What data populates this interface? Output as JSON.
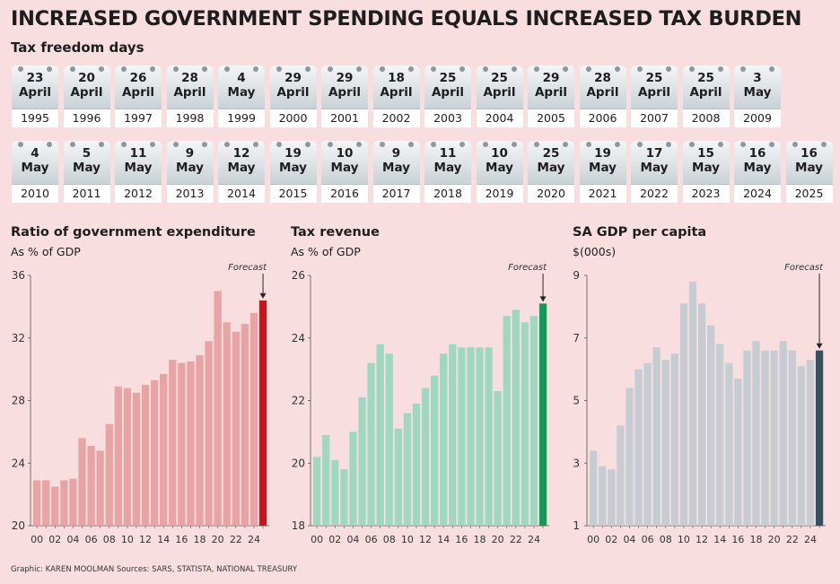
{
  "headline": "INCREASED GOVERNMENT SPENDING EQUALS INCREASED TAX BURDEN",
  "subhead": "Tax freedom days",
  "freedom_days": [
    {
      "day": "23",
      "month": "April",
      "year": "1995"
    },
    {
      "day": "20",
      "month": "April",
      "year": "1996"
    },
    {
      "day": "26",
      "month": "April",
      "year": "1997"
    },
    {
      "day": "28",
      "month": "April",
      "year": "1998"
    },
    {
      "day": "4",
      "month": "May",
      "year": "1999"
    },
    {
      "day": "29",
      "month": "April",
      "year": "2000"
    },
    {
      "day": "29",
      "month": "April",
      "year": "2001"
    },
    {
      "day": "18",
      "month": "April",
      "year": "2002"
    },
    {
      "day": "25",
      "month": "April",
      "year": "2003"
    },
    {
      "day": "25",
      "month": "April",
      "year": "2004"
    },
    {
      "day": "29",
      "month": "April",
      "year": "2005"
    },
    {
      "day": "28",
      "month": "April",
      "year": "2006"
    },
    {
      "day": "25",
      "month": "April",
      "year": "2007"
    },
    {
      "day": "25",
      "month": "April",
      "year": "2008"
    },
    {
      "day": "3",
      "month": "May",
      "year": "2009"
    },
    {
      "day": "4",
      "month": "May",
      "year": "2010"
    },
    {
      "day": "5",
      "month": "May",
      "year": "2011"
    },
    {
      "day": "11",
      "month": "May",
      "year": "2012"
    },
    {
      "day": "9",
      "month": "May",
      "year": "2013"
    },
    {
      "day": "12",
      "month": "May",
      "year": "2014"
    },
    {
      "day": "19",
      "month": "May",
      "year": "2015"
    },
    {
      "day": "10",
      "month": "May",
      "year": "2016"
    },
    {
      "day": "9",
      "month": "May",
      "year": "2017"
    },
    {
      "day": "11",
      "month": "May",
      "year": "2018"
    },
    {
      "day": "10",
      "month": "May",
      "year": "2019"
    },
    {
      "day": "25",
      "month": "May",
      "year": "2020"
    },
    {
      "day": "19",
      "month": "May",
      "year": "2021"
    },
    {
      "day": "17",
      "month": "May",
      "year": "2022"
    },
    {
      "day": "15",
      "month": "May",
      "year": "2023"
    },
    {
      "day": "16",
      "month": "May",
      "year": "2024"
    },
    {
      "day": "16",
      "month": "May",
      "year": "2025"
    }
  ],
  "footer": "Graphic: KAREN MOOLMAN  Sources: SARS, STATISTA, NATIONAL TREASURY",
  "chart_data": [
    {
      "type": "bar",
      "title": "Ratio of government expenditure",
      "subtitle": "As % of GDP",
      "annotation": "Forecast",
      "x": [
        "00",
        "01",
        "02",
        "03",
        "04",
        "05",
        "06",
        "07",
        "08",
        "09",
        "10",
        "11",
        "12",
        "13",
        "14",
        "15",
        "16",
        "17",
        "18",
        "19",
        "20",
        "21",
        "22",
        "23",
        "24",
        "25"
      ],
      "tick_labels": [
        "00",
        "02",
        "04",
        "06",
        "08",
        "10",
        "12",
        "14",
        "16",
        "18",
        "20",
        "22",
        "24"
      ],
      "values": [
        22.9,
        22.9,
        22.5,
        22.9,
        23.0,
        25.6,
        25.1,
        24.8,
        26.5,
        28.9,
        28.8,
        28.5,
        29.0,
        29.3,
        29.7,
        30.6,
        30.4,
        30.5,
        30.9,
        31.8,
        35.0,
        33.0,
        32.4,
        32.9,
        33.6,
        34.4
      ],
      "ylim": [
        20,
        36
      ],
      "yticks": [
        20,
        24,
        28,
        32,
        36
      ],
      "color": "#e8a3a4",
      "forecast_color": "#c4161c"
    },
    {
      "type": "bar",
      "title": "Tax revenue",
      "subtitle": "As % of GDP",
      "annotation": "Forecast",
      "x": [
        "00",
        "01",
        "02",
        "03",
        "04",
        "05",
        "06",
        "07",
        "08",
        "09",
        "10",
        "11",
        "12",
        "13",
        "14",
        "15",
        "16",
        "17",
        "18",
        "19",
        "20",
        "21",
        "22",
        "23",
        "24",
        "25"
      ],
      "tick_labels": [
        "00",
        "02",
        "04",
        "06",
        "08",
        "10",
        "12",
        "14",
        "16",
        "18",
        "20",
        "22",
        "24"
      ],
      "values": [
        20.2,
        20.9,
        20.1,
        19.8,
        21.0,
        22.1,
        23.2,
        23.8,
        23.5,
        21.1,
        21.6,
        21.9,
        22.4,
        22.8,
        23.5,
        23.8,
        23.7,
        23.7,
        23.7,
        23.7,
        22.3,
        24.7,
        24.9,
        24.5,
        24.7,
        25.1
      ],
      "ylim": [
        18,
        26
      ],
      "yticks": [
        18,
        20,
        22,
        24,
        26
      ],
      "color": "#9ed8c1",
      "forecast_color": "#139a5a"
    },
    {
      "type": "bar",
      "title": "SA GDP per capita",
      "subtitle": "$(000s)",
      "annotation": "Forecast",
      "x": [
        "00",
        "01",
        "02",
        "03",
        "04",
        "05",
        "06",
        "07",
        "08",
        "09",
        "10",
        "11",
        "12",
        "13",
        "14",
        "15",
        "16",
        "17",
        "18",
        "19",
        "20",
        "21",
        "22",
        "23",
        "24",
        "25"
      ],
      "tick_labels": [
        "00",
        "02",
        "04",
        "06",
        "08",
        "10",
        "12",
        "14",
        "16",
        "18",
        "20",
        "22",
        "24"
      ],
      "values": [
        3.4,
        2.9,
        2.8,
        4.2,
        5.4,
        6.0,
        6.2,
        6.7,
        6.3,
        6.5,
        8.1,
        8.8,
        8.1,
        7.4,
        6.8,
        6.2,
        5.7,
        6.6,
        6.9,
        6.6,
        6.6,
        6.9,
        6.6,
        6.1,
        6.3,
        6.6
      ],
      "ylim": [
        1,
        9
      ],
      "yticks": [
        1,
        3,
        5,
        7,
        9
      ],
      "color": "#c5ccd2",
      "forecast_color": "#34515f"
    }
  ]
}
